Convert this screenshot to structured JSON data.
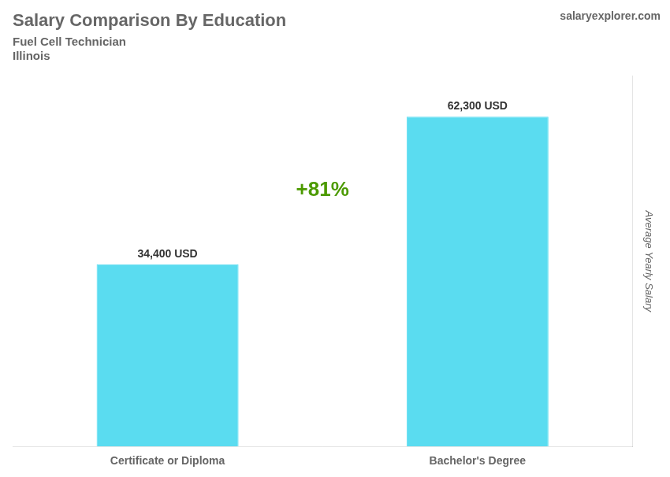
{
  "chart_data": {
    "type": "bar",
    "title": "Salary Comparison By Education",
    "subtitle": [
      "Fuel Cell Technician",
      "Illinois"
    ],
    "categories": [
      "Certificate or Diploma",
      "Bachelor's Degree"
    ],
    "values": [
      34400,
      62300
    ],
    "value_labels": [
      "34,400 USD",
      "62,300 USD"
    ],
    "data_labels": true,
    "color": "#5adcf0",
    "ylabel": "Average Yearly Salary",
    "ylim": [
      0,
      70000
    ],
    "tick_labels": "x",
    "grid": false,
    "legend": false,
    "annotations": [
      "+81%",
      "salaryexplorer.com"
    ]
  }
}
